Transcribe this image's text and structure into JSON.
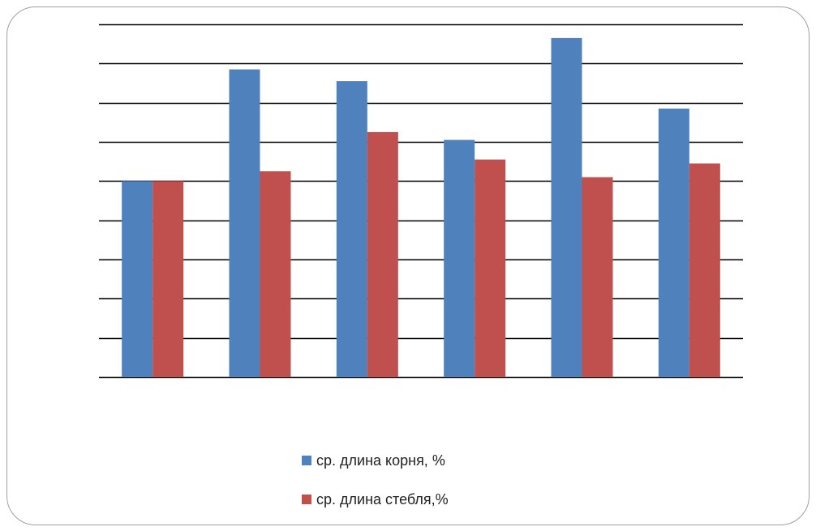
{
  "chart_data": {
    "type": "bar",
    "categories": [
      "",
      "",
      "",
      "",
      "",
      ""
    ],
    "series": [
      {
        "name": "ср. длина корня, %",
        "color": "#4f81bd",
        "values": [
          100,
          157,
          151,
          121,
          173,
          137
        ]
      },
      {
        "name": "ср. длина стебля,%",
        "color": "#c0504d",
        "values": [
          100,
          105,
          125,
          111,
          102,
          109
        ]
      }
    ],
    "ylim": [
      0,
      180
    ],
    "gridlines": [
      0,
      20,
      40,
      60,
      80,
      100,
      120,
      140,
      160,
      180
    ],
    "grid": true,
    "legend_position": "bottom"
  }
}
